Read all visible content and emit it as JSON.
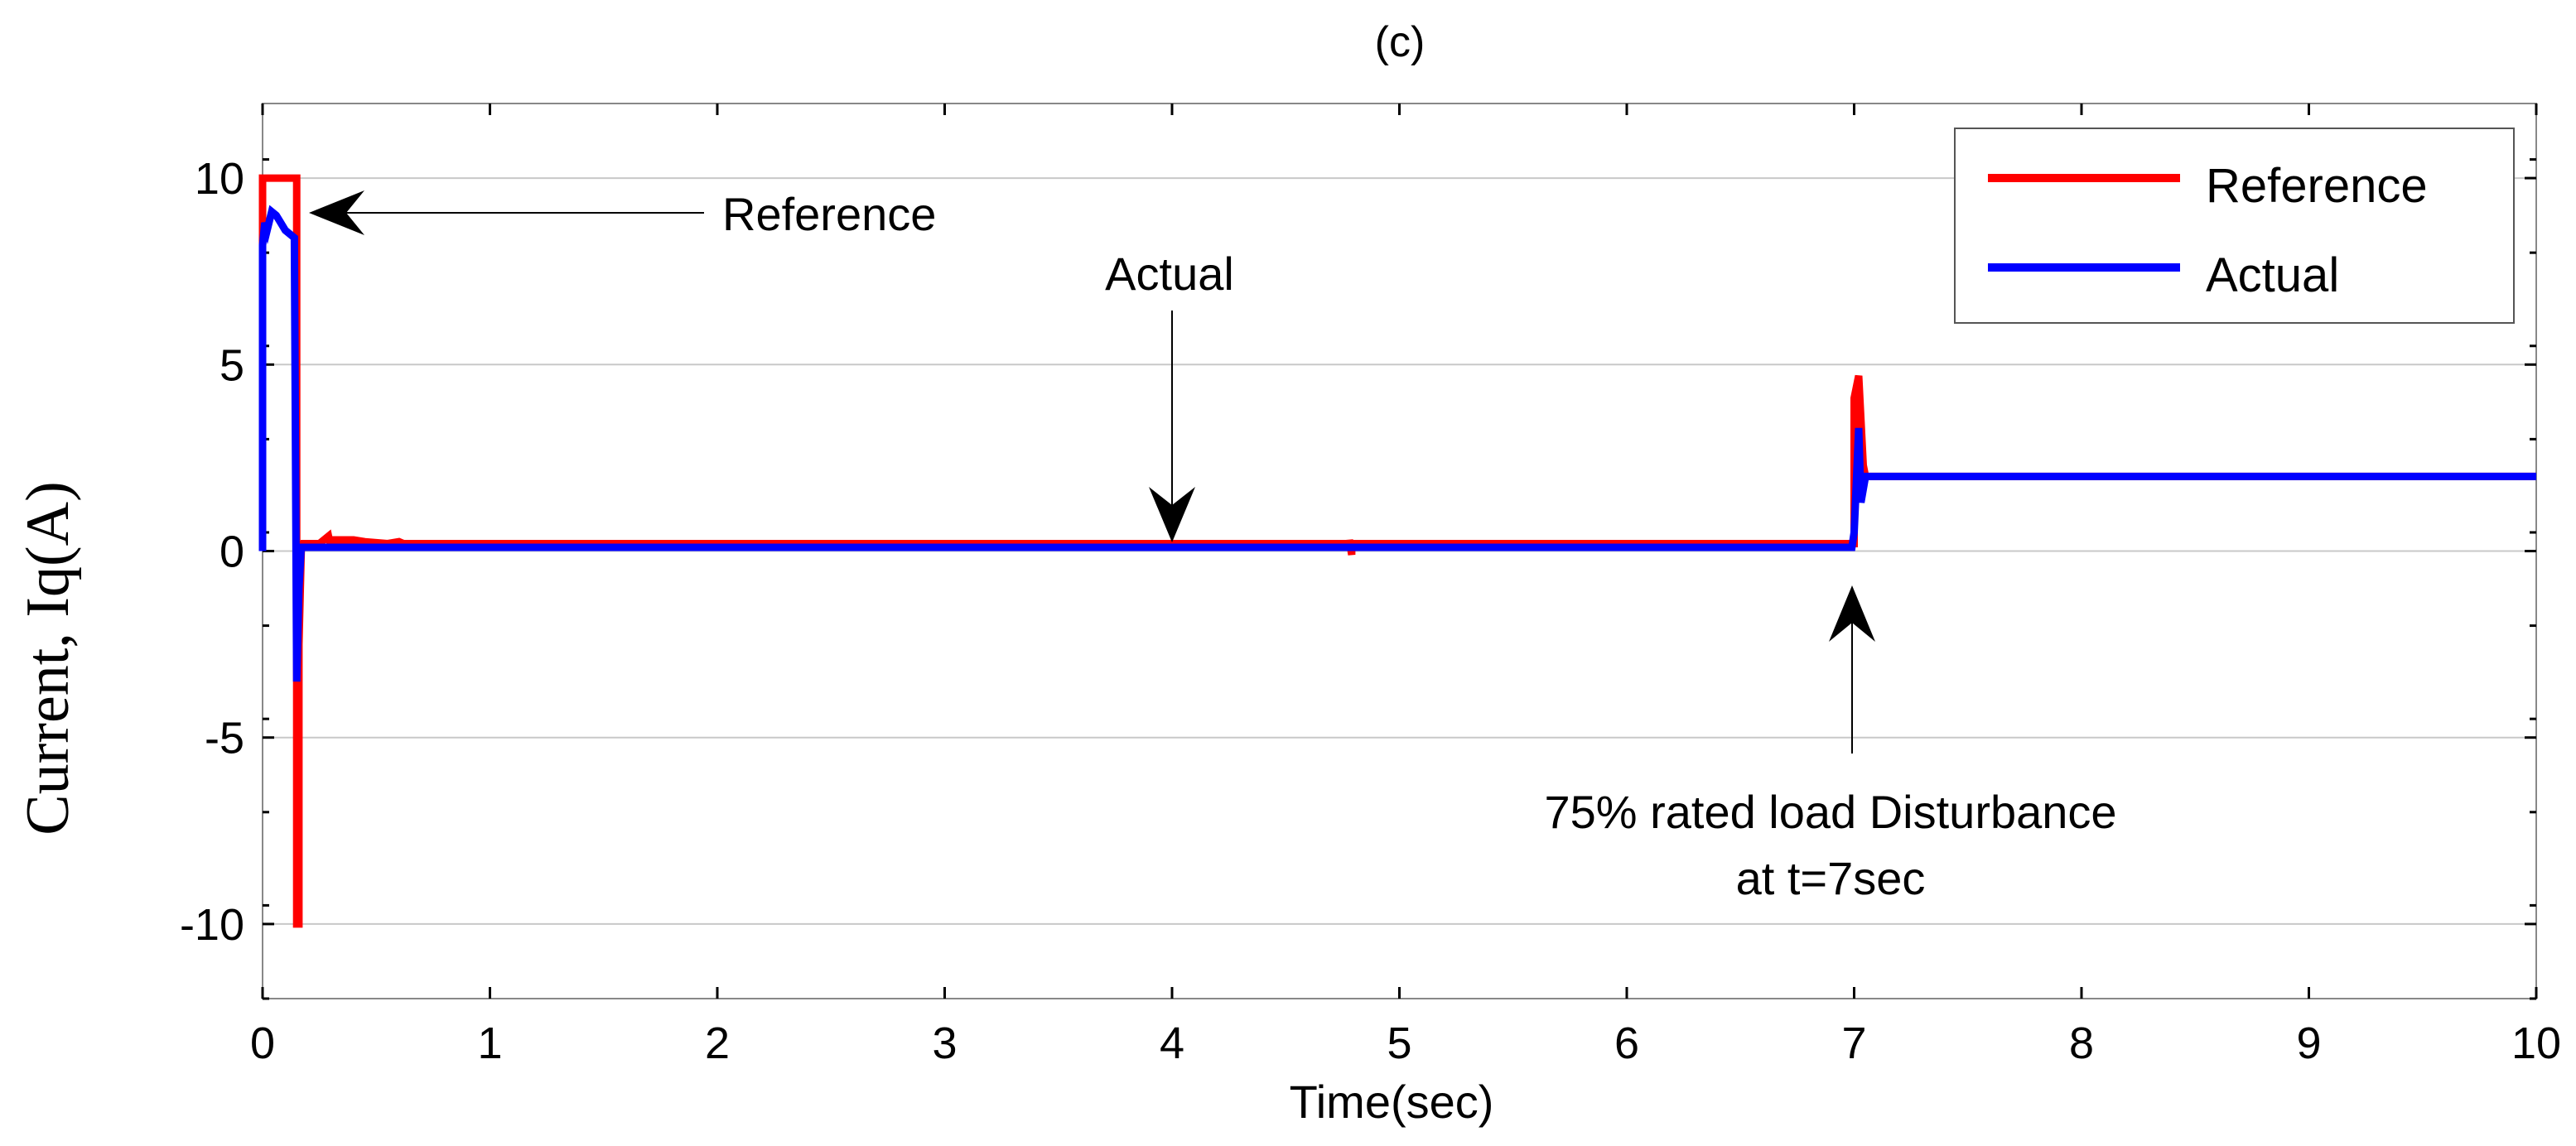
{
  "chart_data": {
    "type": "line",
    "title": "(c)",
    "xlabel": "Time(sec)",
    "ylabel": "Current, Iq(A)",
    "xlim": [
      0,
      10
    ],
    "ylim": [
      -12,
      12
    ],
    "x_ticks": [
      0,
      1,
      2,
      3,
      4,
      5,
      6,
      7,
      8,
      9,
      10
    ],
    "y_ticks": [
      -10,
      -5,
      0,
      5,
      10
    ],
    "grid": "horizontal",
    "legend_position": "top-right",
    "series": [
      {
        "name": "Reference",
        "color": "#ff0000",
        "x": [
          0,
          0,
          0.15,
          0.15,
          0.16,
          0.16,
          0.17,
          0.18,
          0.2,
          0.25,
          0.29,
          0.3,
          0.31,
          0.4,
          0.45,
          0.55,
          0.6,
          0.62,
          0.65,
          0.8,
          1.0,
          4.78,
          4.78,
          4.79,
          4.79,
          7.0,
          7.0,
          7.02,
          7.04,
          7.05,
          7.1,
          10
        ],
        "y": [
          0,
          10,
          10,
          -10,
          -10,
          -2.5,
          0,
          0.2,
          0.2,
          0.2,
          0.4,
          0.1,
          0.3,
          0.3,
          0.25,
          0.2,
          0.25,
          0.2,
          0.2,
          0.2,
          0.2,
          0.2,
          0.3,
          -0.1,
          0.2,
          0.2,
          4.1,
          4.7,
          2.3,
          2.0,
          2.0,
          2.0
        ]
      },
      {
        "name": "Actual",
        "color": "#0000ff",
        "x": [
          0,
          0,
          0.01,
          0.02,
          0.04,
          0.06,
          0.08,
          0.1,
          0.14,
          0.15,
          0.16,
          0.17,
          0.18,
          0.2,
          1.0,
          6.99,
          7.0,
          7.02,
          7.03,
          7.05,
          10
        ],
        "y": [
          0,
          8.2,
          8.8,
          8.6,
          9.1,
          9.0,
          8.8,
          8.6,
          8.4,
          -3.5,
          -1.0,
          0.1,
          0.1,
          0.1,
          0.1,
          0.1,
          0.5,
          3.3,
          1.3,
          2.0,
          2.0
        ]
      }
    ],
    "annotations": [
      {
        "text": "Reference",
        "points_to": {
          "x": 0.2,
          "y": 9.0
        }
      },
      {
        "text": "Actual",
        "points_to": {
          "x": 4.0,
          "y": 0.1
        }
      },
      {
        "text_lines": [
          "75% rated load Disturbance",
          "at t=7sec"
        ],
        "points_to": {
          "x": 7.0,
          "y": -1.0
        }
      }
    ]
  }
}
